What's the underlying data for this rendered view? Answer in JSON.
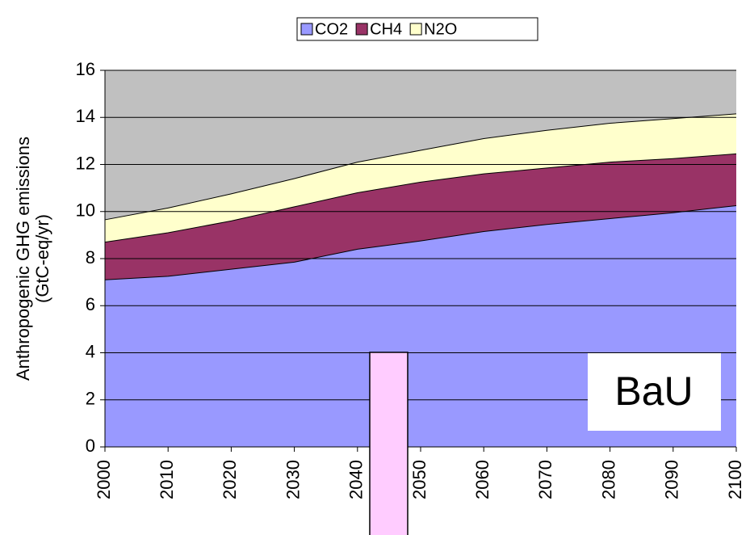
{
  "chart_data": {
    "type": "area",
    "stacked": true,
    "y_label": [
      "Anthropogenic GHG emissions",
      "(GtC-eq/yr)"
    ],
    "annotation": "BaU",
    "x": [
      2000,
      2010,
      2020,
      2030,
      2040,
      2050,
      2060,
      2070,
      2080,
      2090,
      2100
    ],
    "series": [
      {
        "name": "CO2",
        "color": "#9999ff",
        "values": [
          7.1,
          7.25,
          7.55,
          7.85,
          8.4,
          8.75,
          9.15,
          9.45,
          9.7,
          9.95,
          10.25
        ]
      },
      {
        "name": "CH4",
        "color": "#993366",
        "values": [
          1.6,
          1.85,
          2.05,
          2.35,
          2.4,
          2.5,
          2.45,
          2.4,
          2.4,
          2.3,
          2.2
        ]
      },
      {
        "name": "N2O",
        "color": "#ffffcc",
        "values": [
          0.95,
          1.05,
          1.15,
          1.2,
          1.3,
          1.35,
          1.5,
          1.6,
          1.65,
          1.7,
          1.7
        ]
      }
    ],
    "xlim": [
      2000,
      2100
    ],
    "xticks": [
      2000,
      2010,
      2020,
      2030,
      2040,
      2050,
      2060,
      2070,
      2080,
      2090,
      2100
    ],
    "ylim": [
      0,
      16
    ],
    "yticks": [
      0,
      2,
      4,
      6,
      8,
      10,
      12,
      14,
      16
    ],
    "grid": true,
    "legend": "top",
    "background": "#c0c0c0"
  }
}
